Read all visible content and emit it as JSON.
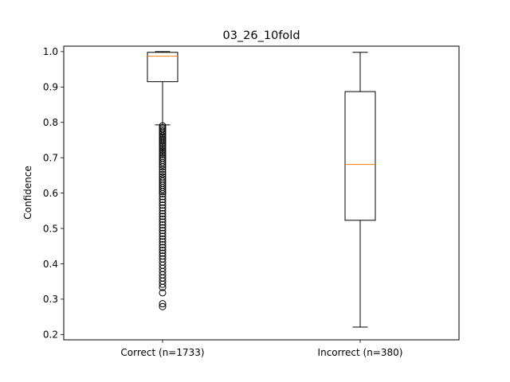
{
  "chart_data": {
    "type": "boxplot",
    "title": "03_26_10fold",
    "xlabel": "",
    "ylabel": "Confidence",
    "ylim": [
      0.185,
      1.0155
    ],
    "yticks": [
      0.2,
      0.3,
      0.4,
      0.5,
      0.6,
      0.7,
      0.8,
      0.9,
      1.0
    ],
    "ytick_labels": [
      "0.2",
      "0.3",
      "0.4",
      "0.5",
      "0.6",
      "0.7",
      "0.8",
      "0.9",
      "1.0"
    ],
    "grid": false,
    "colors": {
      "box": "#000000",
      "median": "#ff7f0e",
      "flier": "#000000"
    },
    "categories": [
      "Correct (n=1733)",
      "Incorrect (n=380)"
    ],
    "boxes": [
      {
        "label": "Correct (n=1733)",
        "whisker_low": 0.793,
        "q1": 0.915,
        "median": 0.987,
        "q3": 0.998,
        "whisker_high": 1.0,
        "fliers": [
          0.79,
          0.785,
          0.781,
          0.776,
          0.772,
          0.767,
          0.762,
          0.757,
          0.752,
          0.748,
          0.743,
          0.738,
          0.733,
          0.728,
          0.723,
          0.718,
          0.713,
          0.708,
          0.703,
          0.698,
          0.692,
          0.686,
          0.68,
          0.674,
          0.667,
          0.66,
          0.653,
          0.646,
          0.64,
          0.634,
          0.628,
          0.622,
          0.616,
          0.61,
          0.604,
          0.598,
          0.59,
          0.582,
          0.574,
          0.566,
          0.558,
          0.55,
          0.542,
          0.534,
          0.526,
          0.518,
          0.51,
          0.502,
          0.494,
          0.486,
          0.478,
          0.47,
          0.462,
          0.454,
          0.446,
          0.438,
          0.43,
          0.422,
          0.414,
          0.405,
          0.396,
          0.387,
          0.378,
          0.369,
          0.36,
          0.351,
          0.342,
          0.333,
          0.318,
          0.287,
          0.279
        ]
      },
      {
        "label": "Incorrect (n=380)",
        "whisker_low": 0.221,
        "q1": 0.523,
        "median": 0.681,
        "q3": 0.887,
        "whisker_high": 0.998,
        "fliers": []
      }
    ]
  }
}
